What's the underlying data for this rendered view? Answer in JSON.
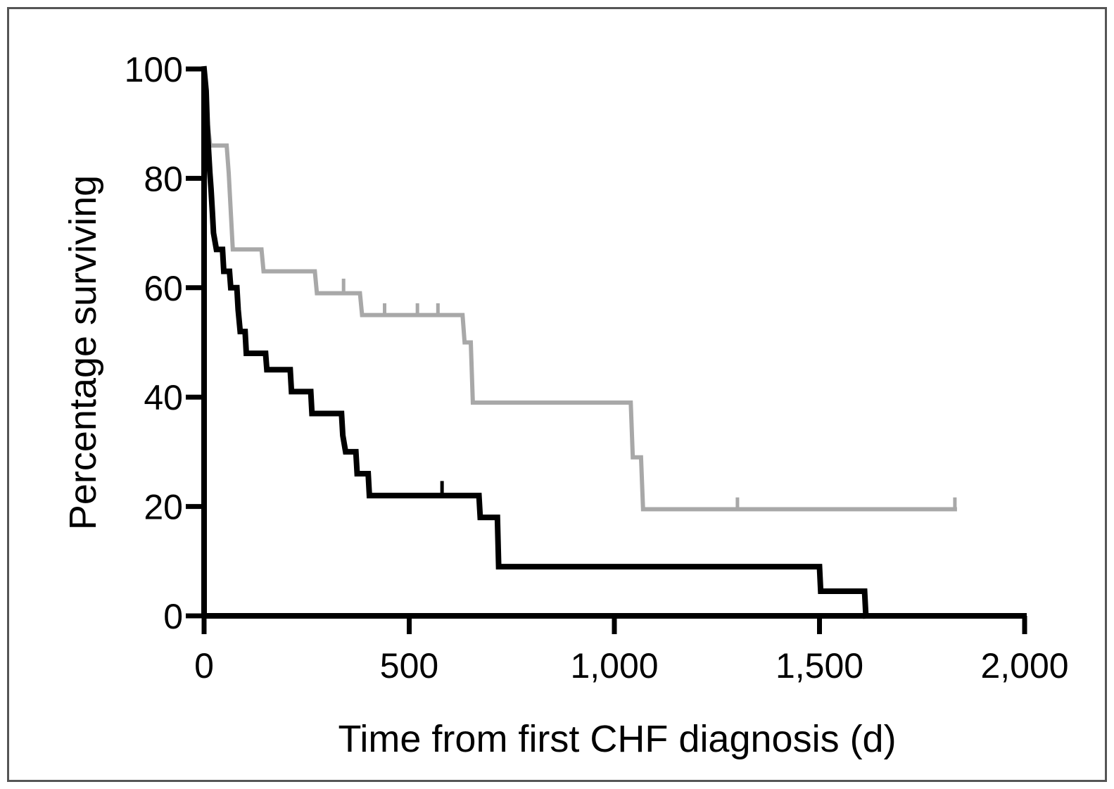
{
  "chart_data": {
    "type": "line",
    "step": true,
    "title": "",
    "xlabel": "Time from first CHF diagnosis (d)",
    "ylabel": "Percentage surviving",
    "xlim": [
      0,
      2000
    ],
    "ylim": [
      0,
      100
    ],
    "xticks": [
      0,
      500,
      1000,
      1500,
      2000
    ],
    "xtick_labels": [
      "0",
      "500",
      "1,000",
      "1,500",
      "2,000"
    ],
    "yticks": [
      0,
      20,
      40,
      60,
      80,
      100
    ],
    "ytick_labels": [
      "0",
      "20",
      "40",
      "60",
      "80",
      "100"
    ],
    "grid": false,
    "legend": "none",
    "series": [
      {
        "color": "#a8a8a8",
        "points": [
          [
            0,
            100
          ],
          [
            5,
            93
          ],
          [
            15,
            86
          ],
          [
            55,
            86
          ],
          [
            60,
            81
          ],
          [
            70,
            67
          ],
          [
            140,
            67
          ],
          [
            145,
            63
          ],
          [
            270,
            63
          ],
          [
            275,
            59
          ],
          [
            380,
            59
          ],
          [
            385,
            55
          ],
          [
            630,
            55
          ],
          [
            635,
            50
          ],
          [
            650,
            50
          ],
          [
            655,
            39
          ],
          [
            1040,
            39
          ],
          [
            1045,
            29
          ],
          [
            1065,
            29
          ],
          [
            1070,
            19.5
          ],
          [
            1830,
            19.5
          ]
        ],
        "censor_marks": [
          [
            340,
            60.5
          ],
          [
            440,
            56
          ],
          [
            520,
            56
          ],
          [
            570,
            56
          ],
          [
            1300,
            20.5
          ],
          [
            1830,
            20.5
          ]
        ]
      },
      {
        "color": "#000000",
        "points": [
          [
            0,
            100
          ],
          [
            5,
            96
          ],
          [
            8,
            89
          ],
          [
            11,
            85
          ],
          [
            14,
            81
          ],
          [
            17,
            78
          ],
          [
            20,
            74
          ],
          [
            23,
            70
          ],
          [
            30,
            67
          ],
          [
            45,
            67
          ],
          [
            48,
            63
          ],
          [
            62,
            63
          ],
          [
            65,
            60
          ],
          [
            80,
            60
          ],
          [
            83,
            56
          ],
          [
            88,
            52
          ],
          [
            100,
            52
          ],
          [
            103,
            48
          ],
          [
            150,
            48
          ],
          [
            153,
            45
          ],
          [
            210,
            45
          ],
          [
            213,
            41
          ],
          [
            260,
            41
          ],
          [
            263,
            37
          ],
          [
            335,
            37
          ],
          [
            338,
            33
          ],
          [
            345,
            30
          ],
          [
            370,
            30
          ],
          [
            373,
            26
          ],
          [
            400,
            26
          ],
          [
            403,
            22
          ],
          [
            670,
            22
          ],
          [
            673,
            18
          ],
          [
            715,
            18
          ],
          [
            718,
            9
          ],
          [
            1500,
            9
          ],
          [
            1503,
            4.5
          ],
          [
            1610,
            4.5
          ],
          [
            1613,
            0
          ]
        ],
        "censor_marks": [
          [
            580,
            23.5
          ]
        ]
      }
    ]
  }
}
